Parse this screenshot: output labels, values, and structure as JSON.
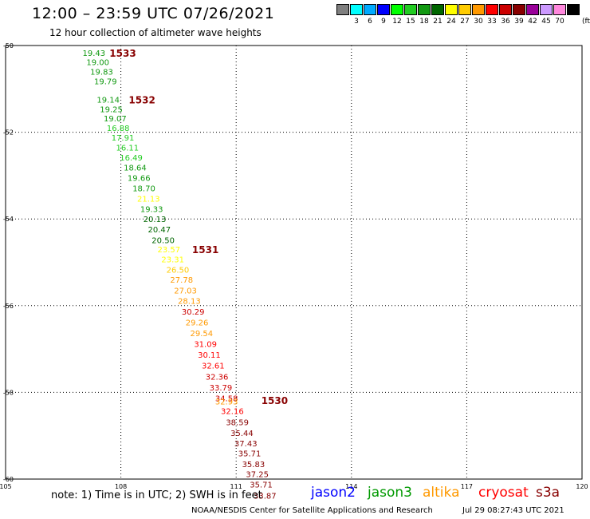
{
  "header": {
    "title": "12:00 – 23:59 UTC 07/26/2021",
    "subtitle": "12 hour collection of altimeter wave heights"
  },
  "color_scale": {
    "unit": "(ft)",
    "swatches": [
      {
        "label": "",
        "color": "#7f7f7f"
      },
      {
        "label": "3",
        "color": "#00ffff"
      },
      {
        "label": "6",
        "color": "#00aaff"
      },
      {
        "label": "9",
        "color": "#0000ff"
      },
      {
        "label": "12",
        "color": "#00ff00"
      },
      {
        "label": "15",
        "color": "#22cc22"
      },
      {
        "label": "18",
        "color": "#119911"
      },
      {
        "label": "21",
        "color": "#006600"
      },
      {
        "label": "24",
        "color": "#ffff00"
      },
      {
        "label": "27",
        "color": "#ffcc00"
      },
      {
        "label": "30",
        "color": "#ff9900"
      },
      {
        "label": "33",
        "color": "#ff0000"
      },
      {
        "label": "36",
        "color": "#cc0000"
      },
      {
        "label": "39",
        "color": "#880000"
      },
      {
        "label": "42",
        "color": "#990099"
      },
      {
        "label": "45",
        "color": "#cc99ff"
      },
      {
        "label": "70",
        "color": "#ff88dd"
      },
      {
        "label": "",
        "color": "#000000"
      }
    ]
  },
  "footer": {
    "note": "note: 1) Time is in UTC; 2) SWH is in feet",
    "missions": [
      {
        "name": "jason2",
        "color": "#0000ff"
      },
      {
        "name": "jason3",
        "color": "#009900"
      },
      {
        "name": "altika",
        "color": "#ff9900"
      },
      {
        "name": "cryosat",
        "color": "#ff0000"
      },
      {
        "name": "s3a",
        "color": "#880000"
      }
    ],
    "credit": "NOAA/NESDIS Center for Satellite Applications and Research",
    "timestamp": "Jul 29 08:27:43 UTC 2021"
  },
  "chart_data": {
    "type": "scatter",
    "xlim": [
      105,
      120
    ],
    "ylim": [
      -60,
      -50
    ],
    "x_ticks": [
      105,
      108,
      111,
      114,
      117,
      120
    ],
    "y_ticks": [
      -50,
      -52,
      -54,
      -56,
      -58,
      -60
    ],
    "grid": true,
    "points": [
      {
        "lon": 107.3,
        "lat": -50.17,
        "swh": "19.43",
        "color": "#119911"
      },
      {
        "lon": 107.4,
        "lat": -50.38,
        "swh": "19.00",
        "color": "#119911"
      },
      {
        "lon": 107.5,
        "lat": -50.6,
        "swh": "19.83",
        "color": "#119911"
      },
      {
        "lon": 107.6,
        "lat": -50.82,
        "swh": "19.79",
        "color": "#119911"
      },
      {
        "lon": 107.67,
        "lat": -51.24,
        "swh": "19.14",
        "color": "#119911"
      },
      {
        "lon": 107.75,
        "lat": -51.46,
        "swh": "19.25",
        "color": "#119911"
      },
      {
        "lon": 107.85,
        "lat": -51.68,
        "swh": "19.07",
        "color": "#119911"
      },
      {
        "lon": 107.93,
        "lat": -51.9,
        "swh": "16.88",
        "color": "#22cc22"
      },
      {
        "lon": 108.05,
        "lat": -52.12,
        "swh": "17.91",
        "color": "#22cc22"
      },
      {
        "lon": 108.17,
        "lat": -52.35,
        "swh": "16.11",
        "color": "#22cc22"
      },
      {
        "lon": 108.27,
        "lat": -52.58,
        "swh": "16.49",
        "color": "#22cc22"
      },
      {
        "lon": 108.37,
        "lat": -52.81,
        "swh": "18.64",
        "color": "#119911"
      },
      {
        "lon": 108.47,
        "lat": -53.05,
        "swh": "19.66",
        "color": "#119911"
      },
      {
        "lon": 108.6,
        "lat": -53.29,
        "swh": "18.70",
        "color": "#119911"
      },
      {
        "lon": 108.72,
        "lat": -53.53,
        "swh": "21.13",
        "color": "#ffff00"
      },
      {
        "lon": 108.8,
        "lat": -53.77,
        "swh": "19.33",
        "color": "#119911"
      },
      {
        "lon": 108.88,
        "lat": -54.0,
        "swh": "20.13",
        "color": "#006600"
      },
      {
        "lon": 109.0,
        "lat": -54.24,
        "swh": "20.47",
        "color": "#006600"
      },
      {
        "lon": 109.1,
        "lat": -54.48,
        "swh": "20.50",
        "color": "#006600"
      },
      {
        "lon": 109.25,
        "lat": -54.7,
        "swh": "23.57",
        "color": "#ffff00"
      },
      {
        "lon": 109.35,
        "lat": -54.93,
        "swh": "23.31",
        "color": "#ffff00"
      },
      {
        "lon": 109.48,
        "lat": -55.17,
        "swh": "26.50",
        "color": "#ffcc00"
      },
      {
        "lon": 109.58,
        "lat": -55.4,
        "swh": "27.78",
        "color": "#ff9900"
      },
      {
        "lon": 109.68,
        "lat": -55.64,
        "swh": "27.03",
        "color": "#ff9900"
      },
      {
        "lon": 109.78,
        "lat": -55.88,
        "swh": "28.13",
        "color": "#ff9900"
      },
      {
        "lon": 109.88,
        "lat": -56.13,
        "swh": "30.29",
        "color": "#cc0000"
      },
      {
        "lon": 109.98,
        "lat": -56.38,
        "swh": "29.26",
        "color": "#ff9900"
      },
      {
        "lon": 110.1,
        "lat": -56.63,
        "swh": "29.54",
        "color": "#ff9900"
      },
      {
        "lon": 110.2,
        "lat": -56.88,
        "swh": "31.09",
        "color": "#ff0000"
      },
      {
        "lon": 110.3,
        "lat": -57.13,
        "swh": "30.11",
        "color": "#ff0000"
      },
      {
        "lon": 110.4,
        "lat": -57.38,
        "swh": "32.61",
        "color": "#ff0000"
      },
      {
        "lon": 110.5,
        "lat": -57.63,
        "swh": "32.36",
        "color": "#cc0000"
      },
      {
        "lon": 110.6,
        "lat": -57.88,
        "swh": "33.79",
        "color": "#cc0000"
      },
      {
        "lon": 110.75,
        "lat": -58.13,
        "swh": "34.58",
        "color": "#cc0000"
      },
      {
        "lon": 110.75,
        "lat": -58.2,
        "swh": "32.93",
        "color": "#ff9900"
      },
      {
        "lon": 110.9,
        "lat": -58.43,
        "swh": "32.16",
        "color": "#ff0000"
      },
      {
        "lon": 111.03,
        "lat": -58.68,
        "swh": "38.59",
        "color": "#880000"
      },
      {
        "lon": 111.15,
        "lat": -58.93,
        "swh": "35.44",
        "color": "#880000"
      },
      {
        "lon": 111.25,
        "lat": -59.17,
        "swh": "37.43",
        "color": "#880000"
      },
      {
        "lon": 111.35,
        "lat": -59.4,
        "swh": "35.71",
        "color": "#880000"
      },
      {
        "lon": 111.45,
        "lat": -59.65,
        "swh": "35.83",
        "color": "#880000"
      },
      {
        "lon": 111.55,
        "lat": -59.88,
        "swh": "37.25",
        "color": "#880000"
      },
      {
        "lon": 111.65,
        "lat": -60.12,
        "swh": "35.71",
        "color": "#880000"
      },
      {
        "lon": 111.75,
        "lat": -60.38,
        "swh": "33.87",
        "color": "#880000"
      }
    ],
    "pass_labels": [
      {
        "text": "1533",
        "lon": 108.05,
        "lat": -50.17
      },
      {
        "text": "1532",
        "lon": 108.55,
        "lat": -51.24
      },
      {
        "text": "1531",
        "lon": 110.2,
        "lat": -54.7
      },
      {
        "text": "1530",
        "lon": 112.0,
        "lat": -58.18
      }
    ]
  }
}
